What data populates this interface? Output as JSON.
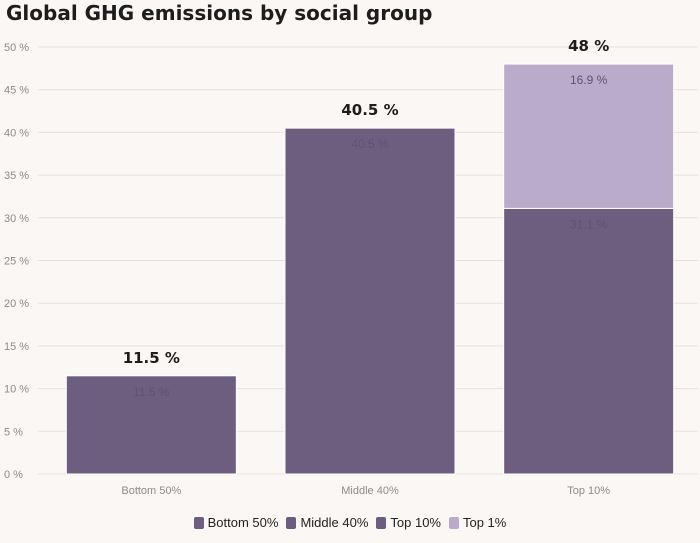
{
  "chart_data": {
    "type": "bar",
    "stacked": true,
    "title": "Global GHG emissions by social group",
    "categories": [
      "Bottom 50%",
      "Middle 40%",
      "Top 10%"
    ],
    "series": [
      {
        "name": "Bottom 50%",
        "values": [
          11.5,
          0,
          0
        ],
        "color": "#6d5e80"
      },
      {
        "name": "Middle 40%",
        "values": [
          0,
          40.5,
          0
        ],
        "color": "#6d5e80"
      },
      {
        "name": "Top 10%",
        "values": [
          0,
          0,
          31.1
        ],
        "color": "#6d5e80"
      },
      {
        "name": "Top 1%",
        "values": [
          0,
          0,
          16.9
        ],
        "color": "#bbabca"
      }
    ],
    "segment_labels": [
      {
        "category": 0,
        "series": 0,
        "text": "11.5 %"
      },
      {
        "category": 1,
        "series": 1,
        "text": "40.5 %"
      },
      {
        "category": 2,
        "series": 2,
        "text": "31.1 %"
      },
      {
        "category": 2,
        "series": 3,
        "text": "16.9 %"
      }
    ],
    "totals": [
      "11.5 %",
      "40.5 %",
      "48 %"
    ],
    "y_ticks": [
      0,
      5,
      10,
      15,
      20,
      25,
      30,
      35,
      40,
      45,
      50
    ],
    "y_tick_suffix": " %",
    "ylim": [
      0,
      50
    ],
    "grid": true,
    "legend_position": "bottom-center",
    "colors": {
      "background": "#fbf7f5",
      "grid": "#e7e1de",
      "axis_text": "#8b8b8b",
      "total_text": "#1d1d1d",
      "inner_label": "#5e5373",
      "top1_label": "#5e5373"
    }
  },
  "legend": {
    "items": [
      {
        "label": "Bottom 50%",
        "color": "#6d5e80"
      },
      {
        "label": "Middle 40%",
        "color": "#6d5e80"
      },
      {
        "label": "Top 10%",
        "color": "#6d5e80"
      },
      {
        "label": "Top 1%",
        "color": "#bbabca"
      }
    ]
  }
}
